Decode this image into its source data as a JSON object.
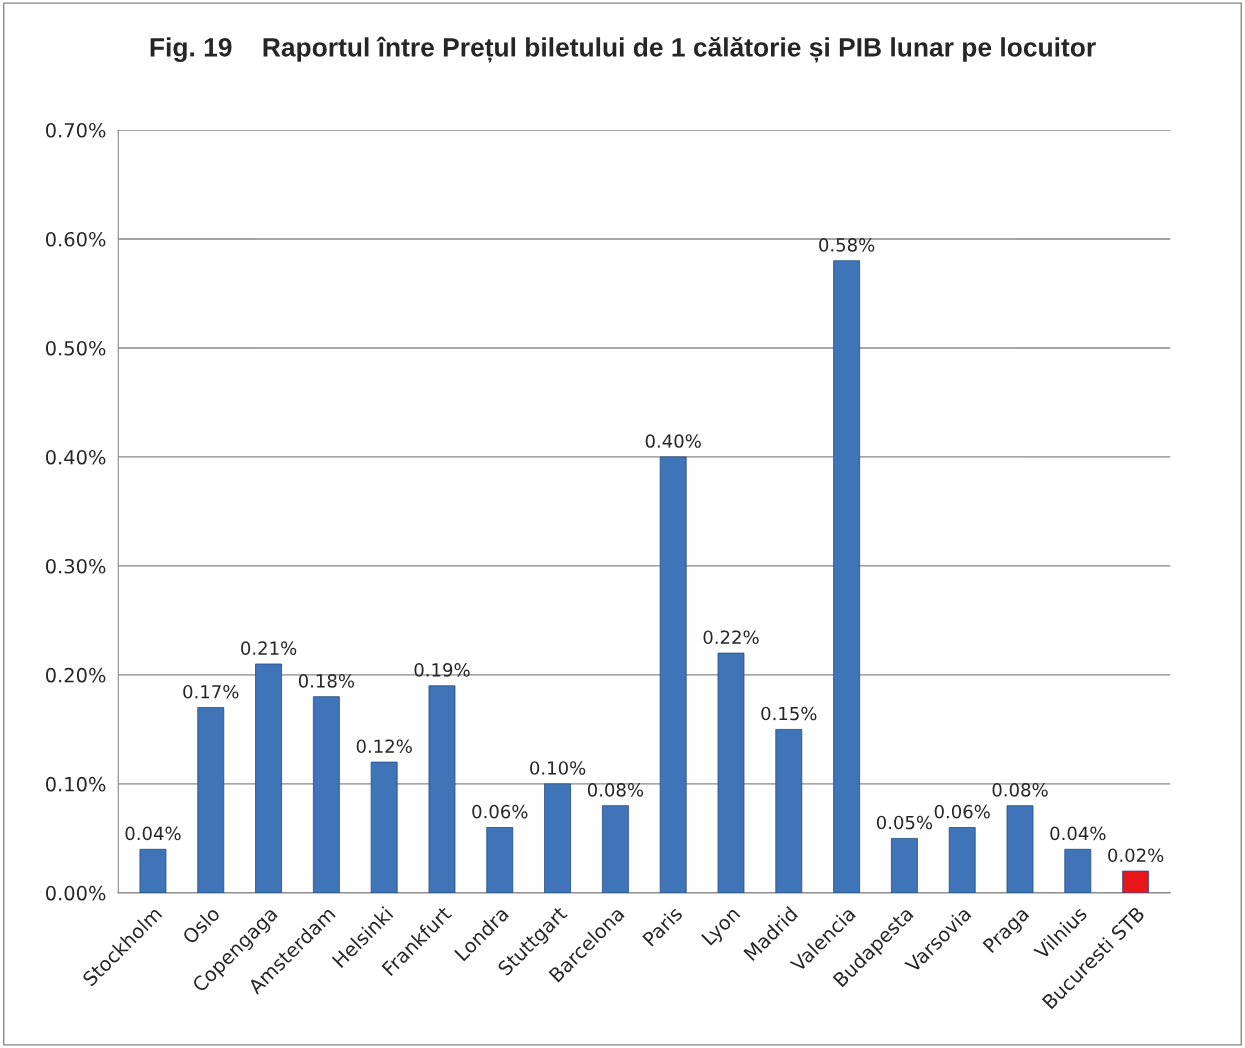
{
  "chart_data": {
    "type": "bar",
    "title": "Fig. 19    Raportul între Prețul biletului de 1 călătorie și PIB lunar pe locuitor",
    "categories": [
      "Stockholm",
      "Oslo",
      "Copengaga",
      "Amsterdam",
      "Helsinki",
      "Frankfurt",
      "Londra",
      "Stuttgart",
      "Barcelona",
      "Paris",
      "Lyon",
      "Madrid",
      "Valencia",
      "Budapesta",
      "Varsovia",
      "Praga",
      "Vilnius",
      "Bucuresti STB"
    ],
    "values": [
      0.04,
      0.17,
      0.21,
      0.18,
      0.12,
      0.19,
      0.06,
      0.1,
      0.08,
      0.4,
      0.22,
      0.15,
      0.58,
      0.05,
      0.06,
      0.08,
      0.04,
      0.02
    ],
    "colors": [
      "#3f75b8",
      "#3f75b8",
      "#3f75b8",
      "#3f75b8",
      "#3f75b8",
      "#3f75b8",
      "#3f75b8",
      "#3f75b8",
      "#3f75b8",
      "#3f75b8",
      "#3f75b8",
      "#3f75b8",
      "#3f75b8",
      "#3f75b8",
      "#3f75b8",
      "#3f75b8",
      "#3f75b8",
      "#e8161b"
    ],
    "value_labels": [
      "0.04%",
      "0.17%",
      "0.21%",
      "0.18%",
      "0.12%",
      "0.19%",
      "0.06%",
      "0.10%",
      "0.08%",
      "0.40%",
      "0.22%",
      "0.15%",
      "0.58%",
      "0.05%",
      "0.06%",
      "0.08%",
      "0.04%",
      "0.02%"
    ],
    "ylim": [
      0,
      0.7
    ],
    "yticks": [
      {
        "value": 0,
        "label": "0.00%"
      },
      {
        "value": 0.1,
        "label": "0.10%"
      },
      {
        "value": 0.2,
        "label": "0.20%"
      },
      {
        "value": 0.3,
        "label": "0.30%"
      },
      {
        "value": 0.4,
        "label": "0.40%"
      },
      {
        "value": 0.5,
        "label": "0.50%"
      },
      {
        "value": 0.6,
        "label": "0.60%"
      },
      {
        "value": 0.7,
        "label": "0.70%"
      }
    ],
    "grid": "y",
    "legend": false
  }
}
